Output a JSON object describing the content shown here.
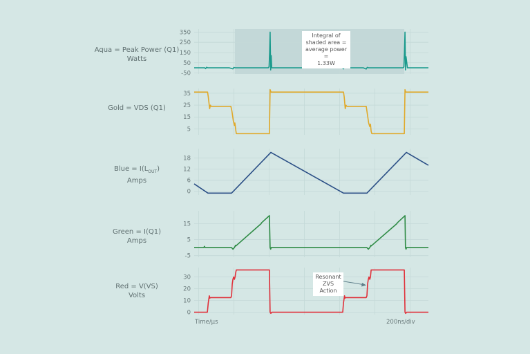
{
  "chart_data": [
    {
      "type": "line",
      "label_line1": "Aqua = Peak Power (Q1)",
      "label_line2": "Watts",
      "color": "#1a9a8c",
      "yticks": [
        350,
        250,
        150,
        50,
        -50
      ],
      "ylim": [
        -60,
        380
      ],
      "shaded_region_ns": [
        231,
        1192
      ],
      "x": [
        0,
        60,
        65,
        70,
        78,
        200,
        220,
        225,
        235,
        380,
        420,
        425,
        428,
        431,
        434,
        437,
        440,
        450,
        840,
        847,
        852,
        860,
        960,
        976,
        982,
        990,
        1150,
        1185,
        1190,
        1193,
        1196,
        1199,
        1202,
        1210,
        1329
      ],
      "y": [
        0,
        0,
        -8,
        6,
        0,
        0,
        -10,
        4,
        0,
        0,
        0,
        10,
        150,
        350,
        -20,
        120,
        0,
        0,
        0,
        -10,
        6,
        0,
        0,
        -12,
        5,
        0,
        0,
        0,
        10,
        150,
        350,
        -20,
        110,
        0,
        0
      ]
    },
    {
      "type": "line",
      "label_line1": "Gold = VDS (Q1)",
      "label_line2": "",
      "color": "#e0a92a",
      "yticks": [
        35,
        25,
        15,
        5
      ],
      "ylim": [
        0,
        39
      ],
      "x": [
        0,
        76,
        80,
        88,
        92,
        96,
        208,
        214,
        222,
        228,
        231,
        236,
        239,
        427,
        429,
        431,
        436,
        442,
        847,
        851,
        857,
        861,
        866,
        976,
        982,
        990,
        996,
        1000,
        1004,
        1008,
        1192,
        1194,
        1196,
        1201,
        1207,
        1329
      ],
      "y": [
        36,
        36,
        32,
        22,
        25,
        24,
        24,
        20,
        12,
        8,
        10,
        4,
        1,
        1,
        20,
        38,
        36,
        36,
        36,
        32,
        22,
        25,
        24,
        24,
        18,
        10,
        7,
        9,
        3,
        1,
        1,
        20,
        38,
        36,
        36,
        36
      ]
    },
    {
      "type": "line",
      "label_line1": "Blue = I(L",
      "label_sub": "OUT",
      "label_line1_end": ")",
      "label_line2": "Amps",
      "color": "#2b4f86",
      "yticks": [
        18,
        12,
        6,
        0
      ],
      "ylim": [
        -2,
        23
      ],
      "x": [
        0,
        78,
        212,
        435,
        847,
        980,
        1204,
        1329
      ],
      "y": [
        4,
        -1,
        -1,
        21,
        -1,
        -1,
        21,
        14
      ]
    },
    {
      "type": "line",
      "label_line1": "Green = I(Q1)",
      "label_line2": "Amps",
      "color": "#2e8b45",
      "yticks": [
        15,
        5,
        -5
      ],
      "ylim": [
        -6,
        23
      ],
      "x": [
        0,
        55,
        58,
        62,
        212,
        220,
        228,
        235,
        236,
        380,
        382,
        427,
        431,
        434,
        437,
        980,
        988,
        996,
        1003,
        1004,
        1150,
        1152,
        1196,
        1199,
        1202,
        1205,
        1329
      ],
      "y": [
        0,
        0,
        0.8,
        0,
        0,
        -1,
        0,
        1.5,
        1,
        15,
        15.5,
        20,
        0,
        -1,
        0,
        0,
        -1,
        0,
        1.5,
        1,
        15,
        15.5,
        20,
        0,
        -1,
        0,
        0
      ]
    },
    {
      "type": "line",
      "label_line1": "Red = V(VS)",
      "label_line2": "Volts",
      "color": "#e0303a",
      "yticks": [
        30,
        20,
        10,
        0
      ],
      "ylim": [
        -2,
        38
      ],
      "x": [
        0,
        75,
        80,
        86,
        89,
        92,
        208,
        212,
        216,
        220,
        224,
        228,
        232,
        236,
        239,
        427,
        431,
        435,
        440,
        843,
        847,
        853,
        856,
        859,
        976,
        980,
        984,
        988,
        992,
        996,
        1000,
        1004,
        1192,
        1196,
        1200,
        1205,
        1329
      ],
      "y": [
        0,
        0,
        8,
        14,
        12,
        12.5,
        12.5,
        14,
        24,
        28,
        30,
        28,
        30,
        34,
        36,
        36,
        0,
        -1,
        0,
        0,
        8,
        14,
        12,
        12.5,
        12.5,
        14,
        24,
        28,
        30,
        28,
        30,
        36,
        36,
        0,
        -1,
        0,
        0
      ]
    }
  ],
  "annotations": {
    "integral_note": [
      "Integral of",
      "shaded area =",
      "average power =",
      "1.33W"
    ],
    "zvs_note": [
      "Resonant",
      "ZVS",
      "Action"
    ]
  },
  "x_axis": {
    "left_label": "Time/µs",
    "right_label": "200ns/div"
  }
}
